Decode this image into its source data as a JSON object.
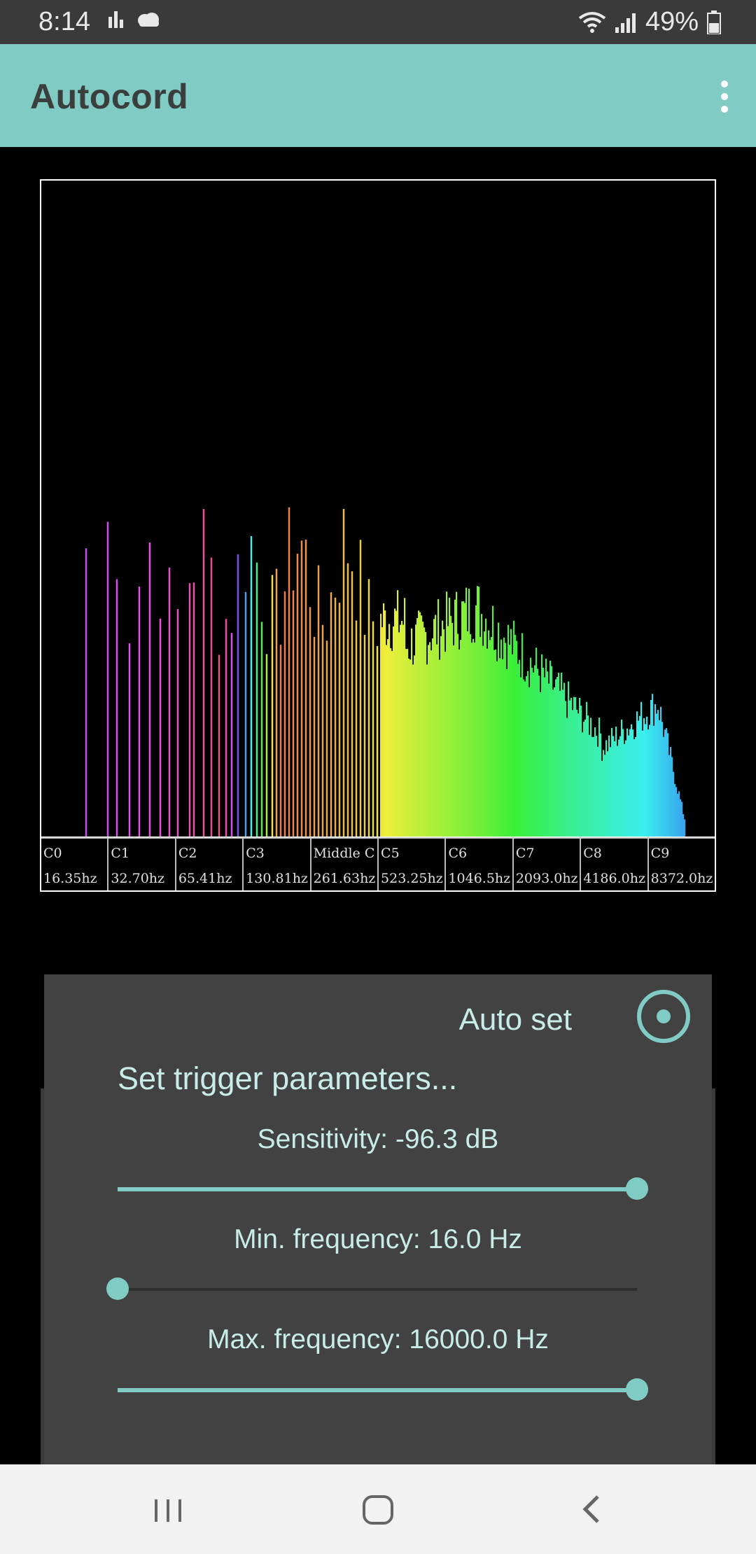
{
  "status": {
    "time": "8:14",
    "battery": "49%"
  },
  "app": {
    "title": "Autocord"
  },
  "spectrum": {
    "notes": [
      {
        "name": "C0",
        "freq": "16.35hz"
      },
      {
        "name": "C1",
        "freq": "32.70hz"
      },
      {
        "name": "C2",
        "freq": "65.41hz"
      },
      {
        "name": "C3",
        "freq": "130.81hz"
      },
      {
        "name": "Middle C",
        "freq": "261.63hz"
      },
      {
        "name": "C5",
        "freq": "523.25hz"
      },
      {
        "name": "C6",
        "freq": "1046.5hz"
      },
      {
        "name": "C7",
        "freq": "2093.0hz"
      },
      {
        "name": "C8",
        "freq": "4186.0hz"
      },
      {
        "name": "C9",
        "freq": "8372.0hz"
      }
    ]
  },
  "trigger": {
    "auto_set_label": "Auto set",
    "auto_set_selected": true,
    "title": "Set trigger parameters...",
    "sensitivity": {
      "label": "Sensitivity:  -96.3 dB",
      "fraction": 1.0
    },
    "min_frequency": {
      "label": "Min. frequency:  16.0 Hz",
      "fraction": 0.0
    },
    "max_frequency": {
      "label": "Max. frequency:  16000.0 Hz",
      "fraction": 1.0
    }
  },
  "colors": {
    "accent": "#80cbc4",
    "panel": "#424242",
    "app_bar": "#80cbc4"
  },
  "icons": {
    "status_left": [
      "signal-bars-icon",
      "cloud-icon"
    ],
    "status_right": [
      "wifi-icon",
      "cellular-signal-icon",
      "battery-icon"
    ],
    "nav": [
      "recents-icon",
      "home-icon",
      "back-icon"
    ]
  }
}
